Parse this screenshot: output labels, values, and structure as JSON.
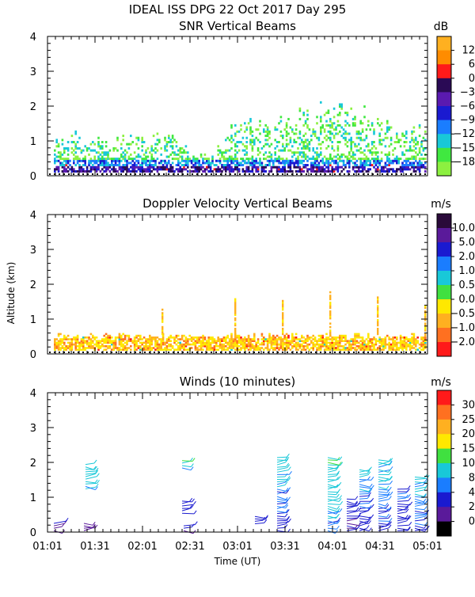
{
  "header": {
    "title": "IDEAL ISS DPG  22 Oct 2017 Day 295"
  },
  "x_axis": {
    "label": "Time (UT)",
    "ticks": [
      "01:01",
      "01:31",
      "02:01",
      "02:31",
      "03:01",
      "03:31",
      "04:01",
      "04:31",
      "05:01"
    ],
    "range_minutes_utc": [
      61,
      301
    ]
  },
  "y_axis": {
    "label": "Altitude (km)",
    "ticks": [
      "0",
      "1",
      "2",
      "3",
      "4"
    ],
    "range_km": [
      0,
      4
    ]
  },
  "panels": [
    {
      "title": "SNR Vertical Beams",
      "unit": "dB",
      "colorbar": {
        "labels": [
          "12",
          "6",
          "0",
          "−3",
          "−6",
          "−9",
          "−12",
          "−15",
          "−18"
        ],
        "colors": [
          "#ffb020",
          "#ff8c00",
          "#ff1a1a",
          "#2a0a55",
          "#5a1ab0",
          "#1a1ad0",
          "#1a7dff",
          "#18c8d8",
          "#40e840",
          "#8cf040"
        ]
      }
    },
    {
      "title": "Doppler Velocity Vertical Beams",
      "unit": "m/s",
      "colorbar": {
        "labels": [
          "10.0",
          "5.0",
          "2.0",
          "1.0",
          "0.5",
          "0.0",
          "−0.5",
          "−1.0",
          "−2.0"
        ],
        "colors": [
          "#2a0a3a",
          "#5a1a9a",
          "#1a1ad0",
          "#1a7dff",
          "#18c8d8",
          "#40e040",
          "#ffe800",
          "#ffb020",
          "#ff7020",
          "#ff1a1a"
        ]
      }
    },
    {
      "title": "Winds (10 minutes)",
      "unit": "m/s",
      "colorbar": {
        "labels": [
          "30",
          "25",
          "20",
          "15",
          "10",
          "8",
          "4",
          "2",
          "0"
        ],
        "colors": [
          "#ff1a1a",
          "#ff7020",
          "#ffb020",
          "#ffe800",
          "#40e040",
          "#18c8d8",
          "#1a7dff",
          "#1a1ad0",
          "#5a1a9a",
          "#000000"
        ]
      }
    }
  ],
  "chart_data": [
    {
      "type": "heatmap",
      "title": "SNR Vertical Beams",
      "xlabel": "Time (UT)",
      "ylabel": "Altitude (km)",
      "xlim_minutes": [
        61,
        301
      ],
      "ylim": [
        0,
        4
      ],
      "unit": "dB",
      "color_levels_db": [
        12,
        6,
        0,
        -3,
        -6,
        -9,
        -12,
        -15,
        -18
      ],
      "approx_echo_top_km": [
        {
          "t": 65,
          "top": 1.0
        },
        {
          "t": 80,
          "top": 1.1
        },
        {
          "t": 95,
          "top": 1.0
        },
        {
          "t": 110,
          "top": 1.2
        },
        {
          "t": 125,
          "top": 0.9
        },
        {
          "t": 138,
          "top": 1.2
        },
        {
          "t": 150,
          "top": 0.6
        },
        {
          "t": 165,
          "top": 0.5
        },
        {
          "t": 180,
          "top": 1.4
        },
        {
          "t": 195,
          "top": 1.3
        },
        {
          "t": 210,
          "top": 1.5
        },
        {
          "t": 225,
          "top": 1.6
        },
        {
          "t": 240,
          "top": 1.8
        },
        {
          "t": 255,
          "top": 1.7
        },
        {
          "t": 270,
          "top": 1.5
        },
        {
          "t": 285,
          "top": 1.2
        },
        {
          "t": 299,
          "top": 1.3
        }
      ]
    },
    {
      "type": "heatmap",
      "title": "Doppler Velocity Vertical Beams",
      "xlabel": "Time (UT)",
      "ylabel": "Altitude (km)",
      "xlim_minutes": [
        61,
        301
      ],
      "ylim": [
        0,
        4
      ],
      "unit": "m/s",
      "color_levels": [
        10.0,
        5.0,
        2.0,
        1.0,
        0.5,
        0.0,
        -0.5,
        -1.0,
        -2.0
      ],
      "approx_layer_top_km": 0.5,
      "spikes": [
        {
          "t": 133,
          "top": 1.3
        },
        {
          "t": 179,
          "top": 1.6
        },
        {
          "t": 209,
          "top": 1.6
        },
        {
          "t": 239,
          "top": 1.8
        },
        {
          "t": 269,
          "top": 1.7
        },
        {
          "t": 299,
          "top": 1.4
        }
      ]
    },
    {
      "type": "scatter",
      "title": "Winds (10 minutes)",
      "xlabel": "Time (UT)",
      "ylabel": "Altitude (km)",
      "xlim_minutes": [
        61,
        301
      ],
      "ylim": [
        0,
        4
      ],
      "unit": "m/s",
      "color_levels": [
        30,
        25,
        20,
        15,
        10,
        8,
        4,
        2,
        0
      ],
      "wind_columns": [
        {
          "t": 65,
          "alt_min": 0.0,
          "alt_max": 0.3,
          "speed": 3
        },
        {
          "t": 84,
          "alt_min": 0.0,
          "alt_max": 0.3,
          "speed": 3
        },
        {
          "t": 85,
          "alt_min": 1.2,
          "alt_max": 2.0,
          "speed": 13
        },
        {
          "t": 147,
          "alt_min": 0.0,
          "alt_max": 0.2,
          "speed": 4
        },
        {
          "t": 146,
          "alt_min": 0.5,
          "alt_max": 0.9,
          "speed": 6
        },
        {
          "t": 146,
          "alt_min": 1.8,
          "alt_max": 2.1,
          "speed": 13
        },
        {
          "t": 192,
          "alt_min": 0.2,
          "alt_max": 0.5,
          "speed": 6
        },
        {
          "t": 206,
          "alt_min": 0.0,
          "alt_max": 2.2,
          "speed": 9
        },
        {
          "t": 238,
          "alt_min": 0.0,
          "alt_max": 2.2,
          "speed": 12
        },
        {
          "t": 250,
          "alt_min": 0.0,
          "alt_max": 1.0,
          "speed": 5
        },
        {
          "t": 258,
          "alt_min": 0.0,
          "alt_max": 1.8,
          "speed": 8
        },
        {
          "t": 270,
          "alt_min": 0.0,
          "alt_max": 2.1,
          "speed": 9
        },
        {
          "t": 282,
          "alt_min": 0.0,
          "alt_max": 1.3,
          "speed": 7
        },
        {
          "t": 293,
          "alt_min": 0.0,
          "alt_max": 1.6,
          "speed": 9
        }
      ]
    }
  ]
}
